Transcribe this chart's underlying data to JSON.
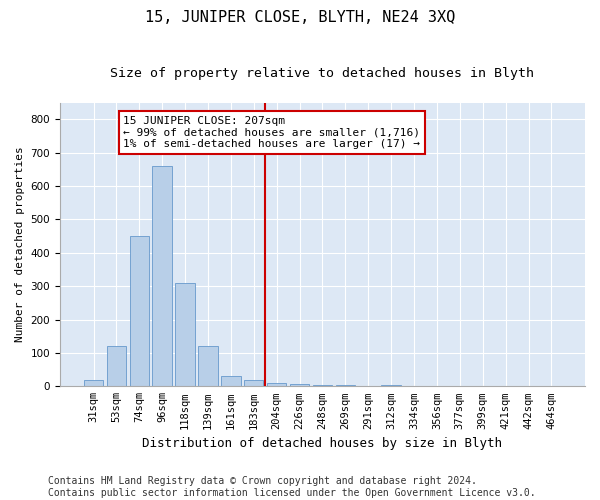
{
  "title": "15, JUNIPER CLOSE, BLYTH, NE24 3XQ",
  "subtitle": "Size of property relative to detached houses in Blyth",
  "xlabel": "Distribution of detached houses by size in Blyth",
  "ylabel": "Number of detached properties",
  "categories": [
    "31sqm",
    "53sqm",
    "74sqm",
    "96sqm",
    "118sqm",
    "139sqm",
    "161sqm",
    "183sqm",
    "204sqm",
    "226sqm",
    "248sqm",
    "269sqm",
    "291sqm",
    "312sqm",
    "334sqm",
    "356sqm",
    "377sqm",
    "399sqm",
    "421sqm",
    "442sqm",
    "464sqm"
  ],
  "values": [
    20,
    120,
    450,
    660,
    310,
    120,
    30,
    20,
    10,
    7,
    3,
    5,
    0,
    5,
    0,
    0,
    0,
    0,
    0,
    0,
    0
  ],
  "bar_color": "#b8cfe8",
  "bar_edge_color": "#6699cc",
  "vline_x": 8.0,
  "vline_color": "#cc0000",
  "annotation_text": "15 JUNIPER CLOSE: 207sqm\n← 99% of detached houses are smaller (1,716)\n1% of semi-detached houses are larger (17) →",
  "annotation_box_facecolor": "#ffffff",
  "annotation_box_edgecolor": "#cc0000",
  "ylim": [
    0,
    850
  ],
  "yticks": [
    0,
    100,
    200,
    300,
    400,
    500,
    600,
    700,
    800
  ],
  "background_color": "#dde8f5",
  "footer_text": "Contains HM Land Registry data © Crown copyright and database right 2024.\nContains public sector information licensed under the Open Government Licence v3.0.",
  "title_fontsize": 11,
  "subtitle_fontsize": 9.5,
  "tick_fontsize": 7.5,
  "ylabel_fontsize": 8,
  "xlabel_fontsize": 9,
  "annotation_fontsize": 8,
  "footer_fontsize": 7
}
